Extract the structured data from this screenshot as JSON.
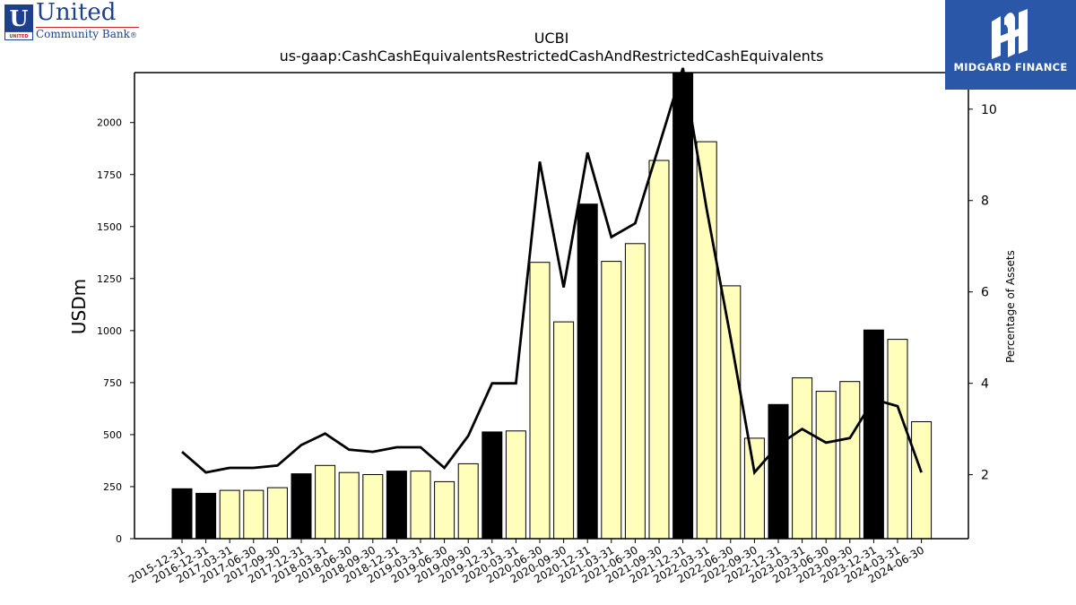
{
  "logos": {
    "left": {
      "line1": "United",
      "line2": "Community Bank",
      "reg": "®",
      "badge_letter": "U",
      "badge_word": "UNITED"
    },
    "right": {
      "name": "MIDGARD FINANCE"
    }
  },
  "colors": {
    "bar_annual": "#000000",
    "bar_quarter": "#ffffbb",
    "line": "#000000",
    "logo_blue": "#1d3f8c",
    "midgard_blue": "#2b57a8"
  },
  "chart_data": {
    "type": "bar",
    "title": "UCBI",
    "subtitle": "us-gaap:CashCashEquivalentsRestrictedCashAndRestrictedCashEquivalents",
    "ylabel": "USDm",
    "y2label": "Percentage of Assets",
    "ylim": [
      0,
      2240
    ],
    "y2lim": [
      0.6,
      10.8
    ],
    "yticks": [
      0,
      250,
      500,
      750,
      1000,
      1250,
      1500,
      1750,
      2000
    ],
    "y2ticks": [
      2,
      4,
      6,
      8,
      10
    ],
    "grid": false,
    "categories": [
      "2015-12-31",
      "2016-12-31",
      "2017-03-31",
      "2017-06-30",
      "2017-09-30",
      "2017-12-31",
      "2018-03-31",
      "2018-06-30",
      "2018-09-30",
      "2018-12-31",
      "2019-03-31",
      "2019-06-30",
      "2019-09-30",
      "2019-12-31",
      "2020-03-31",
      "2020-06-30",
      "2020-09-30",
      "2020-12-31",
      "2021-03-31",
      "2021-06-30",
      "2021-09-30",
      "2021-12-31",
      "2022-03-31",
      "2022-06-30",
      "2022-09-30",
      "2022-12-31",
      "2023-03-31",
      "2023-06-30",
      "2023-09-30",
      "2023-12-31",
      "2024-03-31",
      "2024-06-30"
    ],
    "annual": [
      true,
      true,
      false,
      false,
      false,
      true,
      false,
      false,
      false,
      true,
      false,
      false,
      false,
      true,
      false,
      false,
      false,
      true,
      false,
      false,
      false,
      true,
      false,
      false,
      false,
      true,
      false,
      false,
      false,
      true,
      false,
      false
    ],
    "values": [
      240,
      218,
      232,
      232,
      245,
      312,
      352,
      318,
      308,
      325,
      325,
      274,
      360,
      513,
      518,
      1328,
      1042,
      1608,
      1333,
      1418,
      1818,
      2240,
      1908,
      1215,
      483,
      645,
      773,
      708,
      755,
      1003,
      958,
      562
    ],
    "series": [
      {
        "name": "USDm",
        "type": "bar",
        "axis": "left"
      },
      {
        "name": "Percentage of Assets",
        "type": "line",
        "axis": "right",
        "values": [
          2.5,
          2.05,
          2.15,
          2.15,
          2.2,
          2.65,
          2.9,
          2.55,
          2.5,
          2.6,
          2.6,
          2.15,
          2.85,
          4.0,
          4.0,
          8.85,
          6.1,
          9.05,
          7.2,
          7.5,
          9.2,
          10.9,
          7.8,
          5.0,
          2.05,
          2.65,
          3.0,
          2.7,
          2.8,
          3.65,
          3.5,
          2.05
        ]
      }
    ]
  }
}
